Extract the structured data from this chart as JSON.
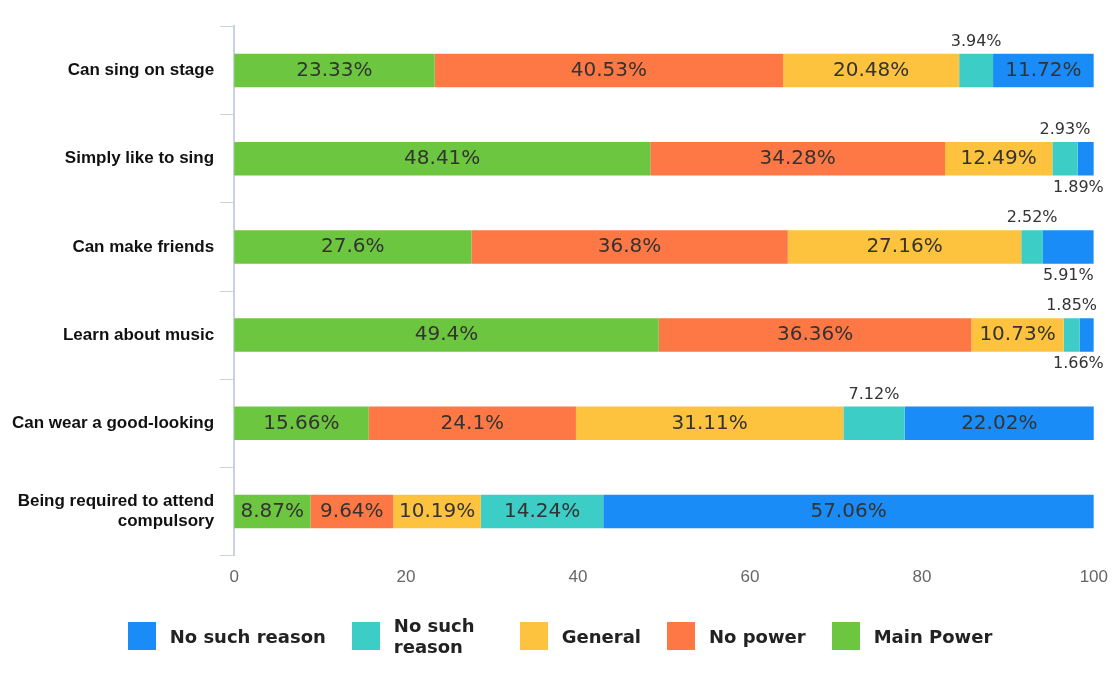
{
  "chart_data": {
    "type": "bar",
    "orientation": "horizontal",
    "stacked": true,
    "legend": "bottom",
    "grid": false,
    "categories": [
      "Can sing on stage",
      "Simply like to sing",
      "Can make friends",
      "Learn about music",
      "Can wear a good-looking",
      "Being required to attend compulsory"
    ],
    "xlim": [
      0,
      100
    ],
    "xticks": [
      0,
      20,
      40,
      60,
      80,
      100
    ],
    "series": [
      {
        "name": "Main Power",
        "color": "#6cc63f",
        "values": [
          23.33,
          48.41,
          27.6,
          49.4,
          15.66,
          8.87
        ],
        "value_labels": [
          "23.33%",
          "48.41%",
          "27.6%",
          "49.4%",
          "15.66%",
          "8.87%"
        ]
      },
      {
        "name": "No power",
        "color": "#fd7845",
        "values": [
          40.53,
          34.28,
          36.8,
          36.36,
          24.1,
          9.64
        ],
        "value_labels": [
          "40.53%",
          "34.28%",
          "36.8%",
          "36.36%",
          "24.1%",
          "9.64%"
        ]
      },
      {
        "name": "General",
        "color": "#fdc23e",
        "values": [
          20.48,
          12.49,
          27.16,
          10.73,
          31.11,
          10.19
        ],
        "value_labels": [
          "20.48%",
          "12.49%",
          "27.16%",
          "10.73%",
          "31.11%",
          "10.19%"
        ]
      },
      {
        "name": "No such reason",
        "color": "#3bcdc6",
        "values": [
          3.94,
          2.93,
          2.52,
          1.85,
          7.12,
          14.24
        ],
        "value_labels": [
          "3.94%",
          "2.93%",
          "2.52%",
          "1.85%",
          "7.12%",
          "14.24%"
        ]
      },
      {
        "name": "No such reason",
        "color": "#1a8cf7",
        "values": [
          11.72,
          1.89,
          5.91,
          1.66,
          22.02,
          57.06
        ],
        "value_labels": [
          "11.72%",
          "1.89%",
          "5.91%",
          "1.66%",
          "22.02%",
          "57.06%"
        ]
      }
    ]
  }
}
